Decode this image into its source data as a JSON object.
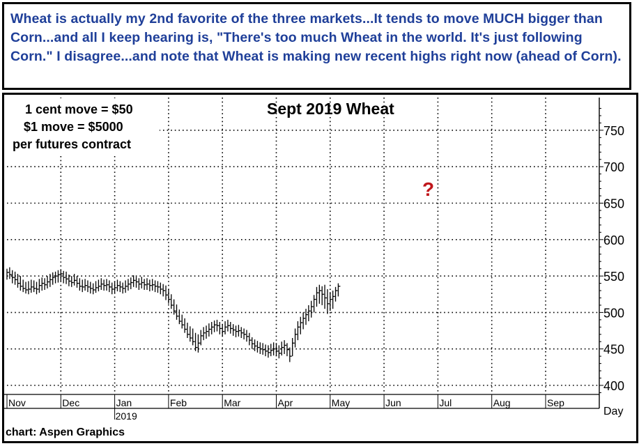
{
  "commentary": "Wheat is actually my 2nd favorite of the three markets...It tends to move MUCH bigger than Corn...and all I keep hearing is, \"There's too much Wheat in the world. It's just following Corn.\" I disagree...and note that Wheat is making new recent highs right now (ahead of Corn).",
  "contract_notes": [
    "1 cent move = $50",
    "$1 move = $5000",
    "per futures contract"
  ],
  "question_mark": "?",
  "source": "chart: Aspen Graphics",
  "colors": {
    "header_text": "#1f3f99",
    "question_mark": "#c0161b",
    "bars": "#000000",
    "grid": "#000000"
  },
  "chart_data": {
    "type": "ohlc-bar",
    "title": "Sept 2019 Wheat",
    "xlabel": "Day",
    "ylabel": "",
    "ylim": [
      380,
      790
    ],
    "y_ticks": [
      400,
      450,
      500,
      550,
      600,
      650,
      700,
      750
    ],
    "x_months": [
      "Nov",
      "Dec",
      "Jan",
      "Feb",
      "Mar",
      "Apr",
      "May",
      "Jun",
      "Jul",
      "Aug",
      "Sep"
    ],
    "year_label": "2019",
    "year_label_month": "Jan",
    "grid": true,
    "series": [
      {
        "values_note": "approximate OHLC bars read from chart",
        "bars": [
          {
            "m": 0.0,
            "h": 560,
            "l": 545,
            "c": 555
          },
          {
            "m": 0.05,
            "h": 562,
            "l": 546,
            "c": 552
          },
          {
            "m": 0.1,
            "h": 558,
            "l": 540,
            "c": 548
          },
          {
            "m": 0.15,
            "h": 556,
            "l": 538,
            "c": 545
          },
          {
            "m": 0.2,
            "h": 553,
            "l": 534,
            "c": 540
          },
          {
            "m": 0.25,
            "h": 550,
            "l": 530,
            "c": 536
          },
          {
            "m": 0.3,
            "h": 545,
            "l": 528,
            "c": 533
          },
          {
            "m": 0.35,
            "h": 542,
            "l": 526,
            "c": 531
          },
          {
            "m": 0.4,
            "h": 543,
            "l": 525,
            "c": 532
          },
          {
            "m": 0.45,
            "h": 545,
            "l": 527,
            "c": 535
          },
          {
            "m": 0.5,
            "h": 544,
            "l": 528,
            "c": 533
          },
          {
            "m": 0.55,
            "h": 542,
            "l": 525,
            "c": 532
          },
          {
            "m": 0.6,
            "h": 546,
            "l": 527,
            "c": 537
          },
          {
            "m": 0.65,
            "h": 548,
            "l": 530,
            "c": 540
          },
          {
            "m": 0.7,
            "h": 547,
            "l": 531,
            "c": 538
          },
          {
            "m": 0.75,
            "h": 550,
            "l": 533,
            "c": 542
          },
          {
            "m": 0.8,
            "h": 553,
            "l": 535,
            "c": 545
          },
          {
            "m": 0.85,
            "h": 555,
            "l": 538,
            "c": 548
          },
          {
            "m": 0.9,
            "h": 556,
            "l": 540,
            "c": 550
          },
          {
            "m": 0.95,
            "h": 558,
            "l": 541,
            "c": 552
          },
          {
            "m": 1.0,
            "h": 559,
            "l": 542,
            "c": 553
          },
          {
            "m": 1.05,
            "h": 557,
            "l": 540,
            "c": 548
          },
          {
            "m": 1.1,
            "h": 556,
            "l": 539,
            "c": 546
          },
          {
            "m": 1.15,
            "h": 552,
            "l": 536,
            "c": 543
          },
          {
            "m": 1.2,
            "h": 550,
            "l": 535,
            "c": 541
          },
          {
            "m": 1.25,
            "h": 553,
            "l": 537,
            "c": 544
          },
          {
            "m": 1.3,
            "h": 550,
            "l": 534,
            "c": 540
          },
          {
            "m": 1.35,
            "h": 547,
            "l": 530,
            "c": 536
          },
          {
            "m": 1.4,
            "h": 545,
            "l": 528,
            "c": 535
          },
          {
            "m": 1.45,
            "h": 546,
            "l": 530,
            "c": 537
          },
          {
            "m": 1.5,
            "h": 544,
            "l": 528,
            "c": 535
          },
          {
            "m": 1.55,
            "h": 542,
            "l": 526,
            "c": 533
          },
          {
            "m": 1.6,
            "h": 540,
            "l": 525,
            "c": 531
          },
          {
            "m": 1.65,
            "h": 543,
            "l": 527,
            "c": 534
          },
          {
            "m": 1.7,
            "h": 545,
            "l": 529,
            "c": 536
          },
          {
            "m": 1.75,
            "h": 547,
            "l": 531,
            "c": 539
          },
          {
            "m": 1.8,
            "h": 545,
            "l": 530,
            "c": 537
          },
          {
            "m": 1.85,
            "h": 546,
            "l": 530,
            "c": 538
          },
          {
            "m": 1.9,
            "h": 544,
            "l": 528,
            "c": 535
          },
          {
            "m": 1.95,
            "h": 541,
            "l": 525,
            "c": 532
          },
          {
            "m": 2.0,
            "h": 542,
            "l": 527,
            "c": 534
          },
          {
            "m": 2.05,
            "h": 545,
            "l": 529,
            "c": 537
          },
          {
            "m": 2.1,
            "h": 543,
            "l": 528,
            "c": 535
          },
          {
            "m": 2.15,
            "h": 541,
            "l": 526,
            "c": 533
          },
          {
            "m": 2.2,
            "h": 544,
            "l": 527,
            "c": 536
          },
          {
            "m": 2.25,
            "h": 546,
            "l": 530,
            "c": 539
          },
          {
            "m": 2.3,
            "h": 548,
            "l": 532,
            "c": 541
          },
          {
            "m": 2.35,
            "h": 551,
            "l": 535,
            "c": 544
          },
          {
            "m": 2.4,
            "h": 549,
            "l": 534,
            "c": 542
          },
          {
            "m": 2.45,
            "h": 547,
            "l": 531,
            "c": 539
          },
          {
            "m": 2.5,
            "h": 549,
            "l": 533,
            "c": 541
          },
          {
            "m": 2.55,
            "h": 546,
            "l": 531,
            "c": 538
          },
          {
            "m": 2.6,
            "h": 547,
            "l": 531,
            "c": 539
          },
          {
            "m": 2.65,
            "h": 545,
            "l": 529,
            "c": 537
          },
          {
            "m": 2.7,
            "h": 546,
            "l": 530,
            "c": 538
          },
          {
            "m": 2.75,
            "h": 544,
            "l": 528,
            "c": 536
          },
          {
            "m": 2.8,
            "h": 543,
            "l": 527,
            "c": 535
          },
          {
            "m": 2.85,
            "h": 541,
            "l": 525,
            "c": 532
          },
          {
            "m": 2.9,
            "h": 539,
            "l": 522,
            "c": 530
          },
          {
            "m": 2.95,
            "h": 537,
            "l": 517,
            "c": 524
          },
          {
            "m": 3.0,
            "h": 532,
            "l": 512,
            "c": 518
          },
          {
            "m": 3.05,
            "h": 525,
            "l": 505,
            "c": 510
          },
          {
            "m": 3.1,
            "h": 518,
            "l": 497,
            "c": 502
          },
          {
            "m": 3.15,
            "h": 511,
            "l": 490,
            "c": 495
          },
          {
            "m": 3.2,
            "h": 504,
            "l": 484,
            "c": 488
          },
          {
            "m": 3.25,
            "h": 497,
            "l": 478,
            "c": 483
          },
          {
            "m": 3.3,
            "h": 492,
            "l": 472,
            "c": 477
          },
          {
            "m": 3.35,
            "h": 486,
            "l": 465,
            "c": 470
          },
          {
            "m": 3.4,
            "h": 481,
            "l": 460,
            "c": 465
          },
          {
            "m": 3.45,
            "h": 478,
            "l": 455,
            "c": 460
          },
          {
            "m": 3.5,
            "h": 472,
            "l": 447,
            "c": 452
          },
          {
            "m": 3.55,
            "h": 470,
            "l": 445,
            "c": 458
          },
          {
            "m": 3.6,
            "h": 476,
            "l": 455,
            "c": 468
          },
          {
            "m": 3.65,
            "h": 480,
            "l": 462,
            "c": 472
          },
          {
            "m": 3.7,
            "h": 482,
            "l": 464,
            "c": 474
          },
          {
            "m": 3.75,
            "h": 485,
            "l": 467,
            "c": 477
          },
          {
            "m": 3.8,
            "h": 487,
            "l": 470,
            "c": 480
          },
          {
            "m": 3.85,
            "h": 489,
            "l": 473,
            "c": 483
          },
          {
            "m": 3.9,
            "h": 490,
            "l": 474,
            "c": 482
          },
          {
            "m": 3.95,
            "h": 487,
            "l": 470,
            "c": 478
          },
          {
            "m": 4.0,
            "h": 484,
            "l": 467,
            "c": 474
          },
          {
            "m": 4.05,
            "h": 488,
            "l": 470,
            "c": 480
          },
          {
            "m": 4.1,
            "h": 490,
            "l": 474,
            "c": 482
          },
          {
            "m": 4.15,
            "h": 487,
            "l": 471,
            "c": 478
          },
          {
            "m": 4.2,
            "h": 484,
            "l": 468,
            "c": 476
          },
          {
            "m": 4.25,
            "h": 482,
            "l": 466,
            "c": 474
          },
          {
            "m": 4.3,
            "h": 483,
            "l": 467,
            "c": 475
          },
          {
            "m": 4.35,
            "h": 480,
            "l": 465,
            "c": 472
          },
          {
            "m": 4.4,
            "h": 478,
            "l": 463,
            "c": 470
          },
          {
            "m": 4.45,
            "h": 476,
            "l": 460,
            "c": 467
          },
          {
            "m": 4.5,
            "h": 472,
            "l": 455,
            "c": 462
          },
          {
            "m": 4.55,
            "h": 466,
            "l": 450,
            "c": 457
          },
          {
            "m": 4.6,
            "h": 463,
            "l": 447,
            "c": 454
          },
          {
            "m": 4.65,
            "h": 461,
            "l": 445,
            "c": 452
          },
          {
            "m": 4.7,
            "h": 459,
            "l": 443,
            "c": 450
          },
          {
            "m": 4.75,
            "h": 458,
            "l": 442,
            "c": 449
          },
          {
            "m": 4.8,
            "h": 456,
            "l": 440,
            "c": 447
          },
          {
            "m": 4.85,
            "h": 455,
            "l": 438,
            "c": 445
          },
          {
            "m": 4.9,
            "h": 457,
            "l": 440,
            "c": 448
          },
          {
            "m": 4.95,
            "h": 459,
            "l": 441,
            "c": 450
          },
          {
            "m": 5.0,
            "h": 458,
            "l": 440,
            "c": 447
          },
          {
            "m": 5.05,
            "h": 455,
            "l": 437,
            "c": 444
          },
          {
            "m": 5.1,
            "h": 460,
            "l": 441,
            "c": 452
          },
          {
            "m": 5.15,
            "h": 462,
            "l": 443,
            "c": 455
          },
          {
            "m": 5.2,
            "h": 458,
            "l": 440,
            "c": 449
          },
          {
            "m": 5.25,
            "h": 452,
            "l": 432,
            "c": 440
          },
          {
            "m": 5.3,
            "h": 465,
            "l": 440,
            "c": 458
          },
          {
            "m": 5.35,
            "h": 478,
            "l": 452,
            "c": 470
          },
          {
            "m": 5.4,
            "h": 488,
            "l": 462,
            "c": 480
          },
          {
            "m": 5.45,
            "h": 494,
            "l": 470,
            "c": 486
          },
          {
            "m": 5.5,
            "h": 500,
            "l": 477,
            "c": 492
          },
          {
            "m": 5.55,
            "h": 505,
            "l": 483,
            "c": 497
          },
          {
            "m": 5.6,
            "h": 510,
            "l": 488,
            "c": 502
          },
          {
            "m": 5.65,
            "h": 516,
            "l": 493,
            "c": 508
          },
          {
            "m": 5.7,
            "h": 524,
            "l": 500,
            "c": 518
          },
          {
            "m": 5.75,
            "h": 535,
            "l": 508,
            "c": 527
          },
          {
            "m": 5.8,
            "h": 538,
            "l": 512,
            "c": 530
          },
          {
            "m": 5.85,
            "h": 536,
            "l": 510,
            "c": 525
          },
          {
            "m": 5.9,
            "h": 538,
            "l": 505,
            "c": 520
          },
          {
            "m": 5.95,
            "h": 532,
            "l": 498,
            "c": 512
          },
          {
            "m": 6.0,
            "h": 528,
            "l": 502,
            "c": 518
          },
          {
            "m": 6.05,
            "h": 530,
            "l": 505,
            "c": 522
          },
          {
            "m": 6.1,
            "h": 535,
            "l": 515,
            "c": 530
          },
          {
            "m": 6.15,
            "h": 540,
            "l": 522,
            "c": 536
          }
        ]
      }
    ]
  }
}
